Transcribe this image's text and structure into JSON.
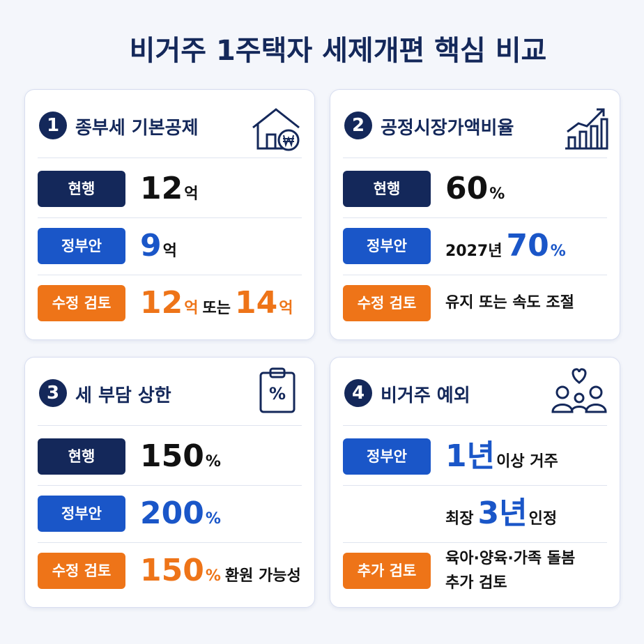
{
  "title": "비거주 1주택자 세제개편 핵심 비교",
  "cards": [
    {
      "number": "1",
      "title": "종부세 기본공제",
      "rows": [
        {
          "badge": "현행",
          "badge_color": "#14285a",
          "lines": [
            [
              {
                "text": "12",
                "color": "#111111",
                "large": true
              },
              {
                "text": "억",
                "color": "#111111",
                "large": false
              }
            ]
          ]
        },
        {
          "badge": "정부안",
          "badge_color": "#1a56c8",
          "lines": [
            [
              {
                "text": "9",
                "color": "#1a56c8",
                "large": true
              },
              {
                "text": "억",
                "color": "#111111",
                "large": false
              }
            ]
          ]
        },
        {
          "badge": "수정 검토",
          "badge_color": "#ee7418",
          "lines": [
            [
              {
                "text": "12",
                "color": "#ee7418",
                "large": true
              },
              {
                "text": "억",
                "color": "#ee7418",
                "large": false
              },
              {
                "text": "또는",
                "color": "#111111",
                "large": false
              },
              {
                "text": "14",
                "color": "#ee7418",
                "large": true
              },
              {
                "text": "억",
                "color": "#ee7418",
                "large": false
              }
            ]
          ]
        }
      ]
    },
    {
      "number": "2",
      "title": "공정시장가액비율",
      "rows": [
        {
          "badge": "현행",
          "badge_color": "#14285a",
          "lines": [
            [
              {
                "text": "60",
                "color": "#111111",
                "large": true
              },
              {
                "text": "%",
                "color": "#111111",
                "large": false
              }
            ]
          ]
        },
        {
          "badge": "정부안",
          "badge_color": "#1a56c8",
          "lines": [
            [
              {
                "text": "2027년",
                "color": "#111111",
                "large": false
              },
              {
                "text": "70",
                "color": "#1a56c8",
                "large": true
              },
              {
                "text": "%",
                "color": "#1a56c8",
                "large": false
              }
            ]
          ]
        },
        {
          "badge": "수정 검토",
          "badge_color": "#ee7418",
          "lines": [
            [
              {
                "text": "유지 또는 속도 조절",
                "color": "#111111",
                "large": false
              }
            ]
          ]
        }
      ]
    },
    {
      "number": "3",
      "title": "세 부담 상한",
      "rows": [
        {
          "badge": "현행",
          "badge_color": "#14285a",
          "lines": [
            [
              {
                "text": "150",
                "color": "#111111",
                "large": true
              },
              {
                "text": "%",
                "color": "#111111",
                "large": false
              }
            ]
          ]
        },
        {
          "badge": "정부안",
          "badge_color": "#1a56c8",
          "lines": [
            [
              {
                "text": "200",
                "color": "#1a56c8",
                "large": true
              },
              {
                "text": "%",
                "color": "#1a56c8",
                "large": false
              }
            ]
          ]
        },
        {
          "badge": "수정 검토",
          "badge_color": "#ee7418",
          "lines": [
            [
              {
                "text": "150",
                "color": "#ee7418",
                "large": true
              },
              {
                "text": "%",
                "color": "#ee7418",
                "large": false
              },
              {
                "text": "환원 가능성",
                "color": "#111111",
                "large": false
              }
            ]
          ]
        }
      ]
    },
    {
      "number": "4",
      "title": "비거주 예외",
      "rows": [
        {
          "badge": "정부안",
          "badge_color": "#1a56c8",
          "lines": [
            [
              {
                "text": "1년",
                "color": "#1a56c8",
                "large": true
              },
              {
                "text": "이상 거주",
                "color": "#111111",
                "large": false
              }
            ]
          ]
        },
        {
          "lines": [
            [
              {
                "text": "최장",
                "color": "#111111",
                "large": false
              },
              {
                "text": "3년",
                "color": "#1a56c8",
                "large": true
              },
              {
                "text": "인정",
                "color": "#111111",
                "large": false
              }
            ]
          ]
        },
        {
          "badge": "추가 검토",
          "badge_color": "#ee7418",
          "lines": [
            [
              {
                "text": "육아·양육·가족 돌봄",
                "color": "#111111",
                "large": false
              }
            ],
            [
              {
                "text": "추가 검토",
                "color": "#111111",
                "large": false
              }
            ]
          ]
        }
      ]
    }
  ]
}
